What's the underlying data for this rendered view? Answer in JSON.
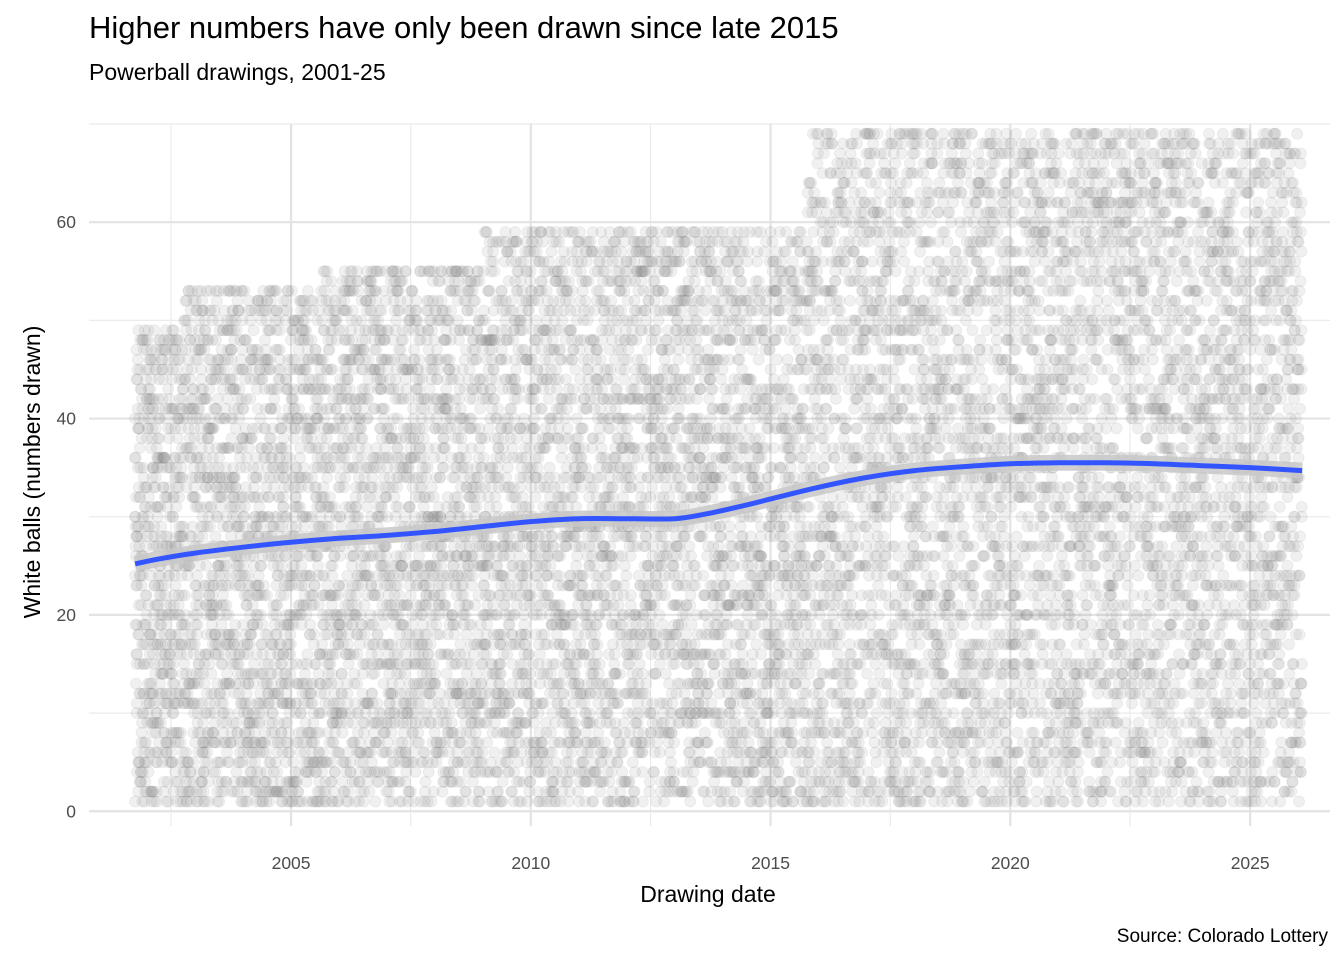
{
  "chart_data": {
    "type": "scatter",
    "title": "Higher numbers have only been drawn since late 2015",
    "subtitle": "Powerball drawings, 2001-25",
    "xlabel": "Drawing date",
    "ylabel": "White balls (numbers drawn)",
    "caption": "Source: Colorado Lottery",
    "x_range": [
      "2000-10-15",
      "2026-09-01"
    ],
    "y_range": [
      -1.5,
      70
    ],
    "x_ticks": [
      {
        "date": "2005-01-01",
        "label": "2005"
      },
      {
        "date": "2010-01-01",
        "label": "2010"
      },
      {
        "date": "2015-01-01",
        "label": "2015"
      },
      {
        "date": "2020-01-01",
        "label": "2020"
      },
      {
        "date": "2025-01-01",
        "label": "2025"
      }
    ],
    "x_minor_ticks": [
      "2002-07-01",
      "2007-07-01",
      "2012-07-01",
      "2017-07-01",
      "2022-07-01"
    ],
    "y_ticks": [
      {
        "value": 0,
        "label": "0"
      },
      {
        "value": 20,
        "label": "20"
      },
      {
        "value": 40,
        "label": "40"
      },
      {
        "value": 60,
        "label": "60"
      }
    ],
    "y_minor_ticks": [
      10,
      30,
      50,
      70
    ],
    "grid": true,
    "legend": "none",
    "draw_period": [
      "2001-10-01",
      "2026-02-01"
    ],
    "number_ranges": [
      {
        "from": "2001-10-01",
        "to": "2002-10-01",
        "max_ball": 49
      },
      {
        "from": "2002-10-01",
        "to": "2005-08-30",
        "max_ball": 53
      },
      {
        "from": "2005-08-30",
        "to": "2009-01-07",
        "max_ball": 55
      },
      {
        "from": "2009-01-07",
        "to": "2012-01-15",
        "max_ball": 59
      },
      {
        "from": "2012-01-15",
        "to": "2015-10-07",
        "max_ball": 59
      },
      {
        "from": "2015-10-07",
        "to": "2026-02-01",
        "max_ball": 69
      }
    ],
    "balls_per_draw": 5,
    "draws_per_week": 2,
    "point_color": "#808080",
    "point_alpha": 0.12,
    "smooth_color": "#3355ff",
    "smooth_band_color": "#c8c8c8",
    "smooth": [
      {
        "date": "2001-10-01",
        "y": 25.2
      },
      {
        "date": "2002-04-01",
        "y": 25.7
      },
      {
        "date": "2003-01-01",
        "y": 26.3
      },
      {
        "date": "2004-01-01",
        "y": 26.9
      },
      {
        "date": "2005-01-01",
        "y": 27.4
      },
      {
        "date": "2006-01-01",
        "y": 27.8
      },
      {
        "date": "2007-01-01",
        "y": 28.1
      },
      {
        "date": "2008-01-01",
        "y": 28.5
      },
      {
        "date": "2009-01-01",
        "y": 29.0
      },
      {
        "date": "2010-01-01",
        "y": 29.5
      },
      {
        "date": "2011-01-01",
        "y": 29.8
      },
      {
        "date": "2012-01-01",
        "y": 29.8
      },
      {
        "date": "2013-01-01",
        "y": 29.8
      },
      {
        "date": "2013-09-01",
        "y": 30.3
      },
      {
        "date": "2014-06-01",
        "y": 31.1
      },
      {
        "date": "2015-03-01",
        "y": 32.0
      },
      {
        "date": "2016-01-01",
        "y": 33.0
      },
      {
        "date": "2017-01-01",
        "y": 34.0
      },
      {
        "date": "2018-01-01",
        "y": 34.7
      },
      {
        "date": "2019-01-01",
        "y": 35.1
      },
      {
        "date": "2020-01-01",
        "y": 35.4
      },
      {
        "date": "2021-01-01",
        "y": 35.5
      },
      {
        "date": "2022-01-01",
        "y": 35.5
      },
      {
        "date": "2023-01-01",
        "y": 35.4
      },
      {
        "date": "2024-01-01",
        "y": 35.2
      },
      {
        "date": "2025-01-01",
        "y": 35.0
      },
      {
        "date": "2026-02-01",
        "y": 34.7
      }
    ]
  }
}
